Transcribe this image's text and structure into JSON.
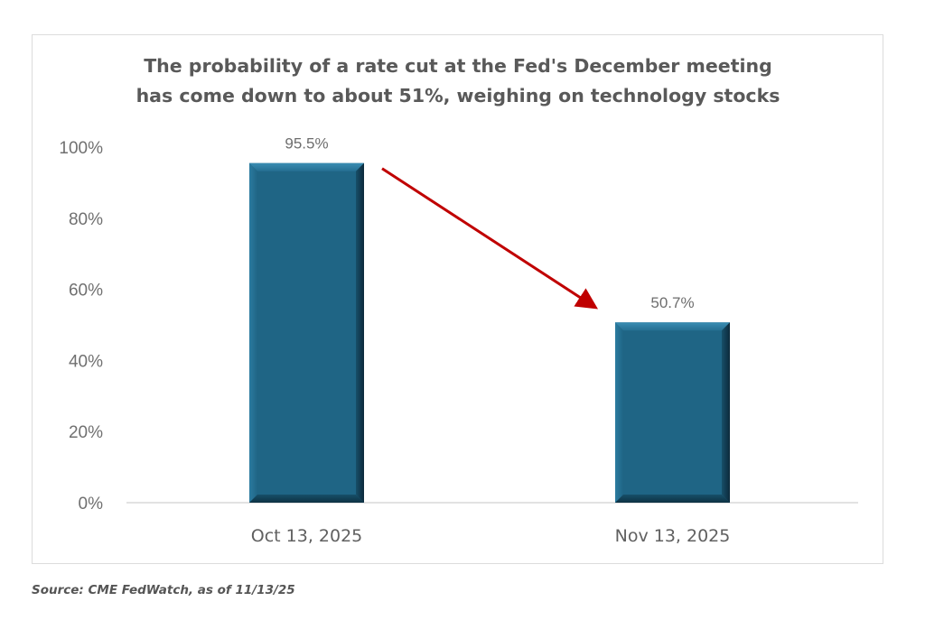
{
  "chart_data": {
    "type": "bar",
    "title": "The probability of a rate cut at the Fed's December meeting has come down to about 51%, weighing on technology stocks",
    "title_lines": [
      "The probability of a rate cut at the Fed's December meeting",
      "has come down to about 51%, weighing on technology stocks"
    ],
    "categories": [
      "Oct 13, 2025",
      "Nov 13, 2025"
    ],
    "values": [
      95.5,
      50.7
    ],
    "data_labels": [
      "95.5%",
      "50.7%"
    ],
    "xlabel": "",
    "ylabel": "",
    "ylim": [
      0,
      100
    ],
    "yticks": [
      0,
      20,
      40,
      60,
      80,
      100
    ],
    "ytick_labels": [
      "0%",
      "20%",
      "40%",
      "60%",
      "80%",
      "100%"
    ],
    "grid": false,
    "legend": "none",
    "annotations": [
      {
        "type": "arrow",
        "from_category": "Oct 13, 2025",
        "to_category": "Nov 13, 2025",
        "meaning": "decline"
      }
    ],
    "colors": {
      "bar": "#1f6585",
      "bar_dark": "#0e2f42",
      "arrow": "#c00000",
      "axis_line": "#d9d9d9"
    }
  },
  "source": "Source: CME FedWatch, as of 11/13/25"
}
